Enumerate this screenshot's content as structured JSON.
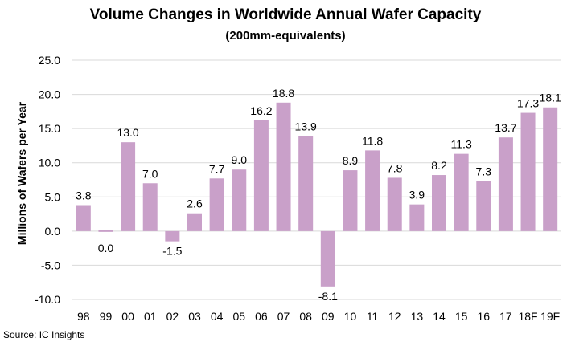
{
  "chart_data": {
    "type": "bar",
    "title": "Volume Changes in Worldwide Annual Wafer Capacity",
    "subtitle": "(200mm-equivalents)",
    "xlabel": "",
    "ylabel": "Millions of Wafers per Year",
    "ylim": [
      -10,
      25
    ],
    "yticks": [
      "25.0",
      "20.0",
      "15.0",
      "10.0",
      "5.0",
      "0.0",
      "-5.0",
      "-10.0"
    ],
    "ytick_values": [
      25,
      20,
      15,
      10,
      5,
      0,
      -5,
      -10
    ],
    "categories": [
      "98",
      "99",
      "00",
      "01",
      "02",
      "03",
      "04",
      "05",
      "06",
      "07",
      "08",
      "09",
      "10",
      "11",
      "12",
      "13",
      "14",
      "15",
      "16",
      "17",
      "18F",
      "19F"
    ],
    "values": [
      3.8,
      0.0,
      13.0,
      7.0,
      -1.5,
      2.6,
      7.7,
      9.0,
      16.2,
      18.8,
      13.9,
      -8.1,
      8.9,
      11.8,
      7.8,
      3.9,
      8.2,
      11.3,
      7.3,
      13.7,
      17.3,
      18.1
    ],
    "data_labels": [
      "3.8",
      "0.0",
      "13.0",
      "7.0",
      "-1.5",
      "2.6",
      "7.7",
      "9.0",
      "16.2",
      "18.8",
      "13.9",
      "-8.1",
      "8.9",
      "11.8",
      "7.8",
      "3.9",
      "8.2",
      "11.3",
      "7.3",
      "13.7",
      "17.3",
      "18.1"
    ],
    "bar_color": "#c9a0c9",
    "grid": true,
    "grid_color": "#d9d9d9",
    "legend": null
  },
  "source": "Source:  IC Insights"
}
